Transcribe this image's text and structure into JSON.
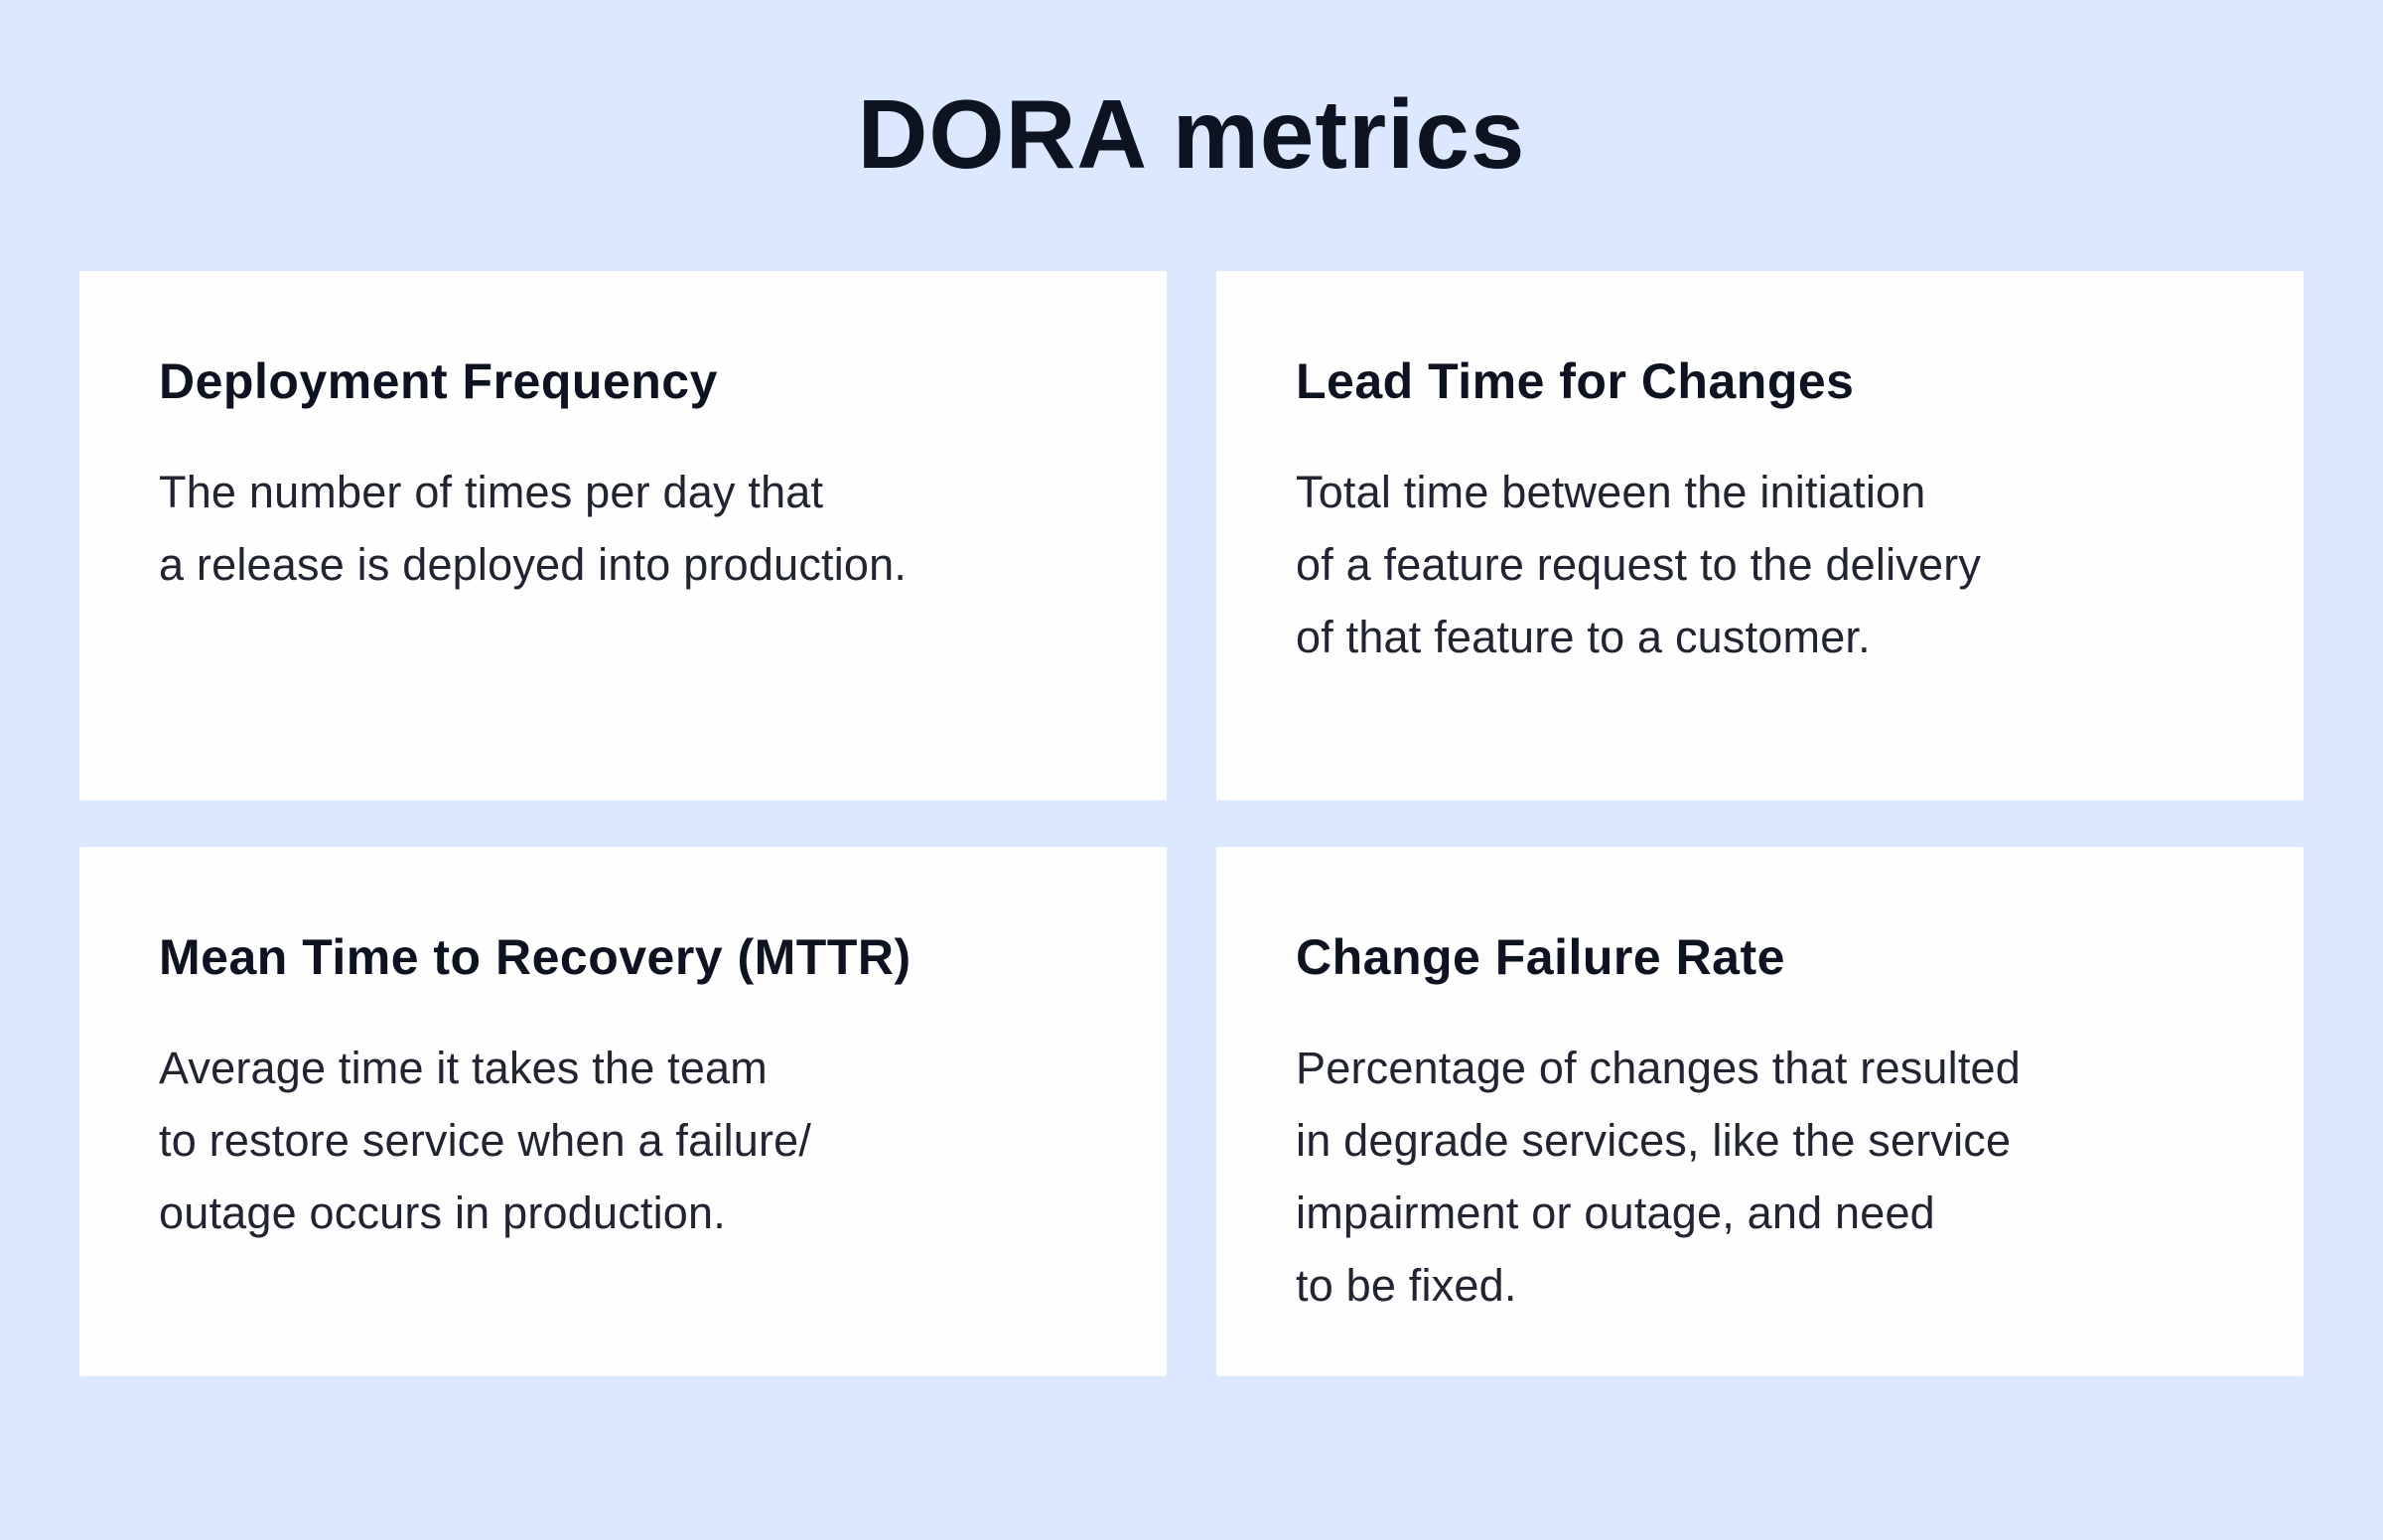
{
  "page": {
    "title": "DORA metrics"
  },
  "colors": {
    "page-bg": "#dbe8fd",
    "card-bg": "#fefefe",
    "heading-color": "#0e1322",
    "body-color": "#212431"
  },
  "cards": [
    {
      "heading": "Deployment Frequency",
      "body": "The number of times per day that\na release is deployed into production."
    },
    {
      "heading": "Lead Time for Changes",
      "body": "Total time between the initiation\nof a feature request to the delivery\nof that feature to a customer."
    },
    {
      "heading": "Mean Time to Recovery (MTTR)",
      "body": "Average time it takes the team\nto restore service when a failure/\noutage occurs in production."
    },
    {
      "heading": "Change Failure Rate",
      "body": "Percentage of changes that resulted\nin degrade services, like the service\nimpairment or outage, and need\nto be fixed."
    }
  ]
}
